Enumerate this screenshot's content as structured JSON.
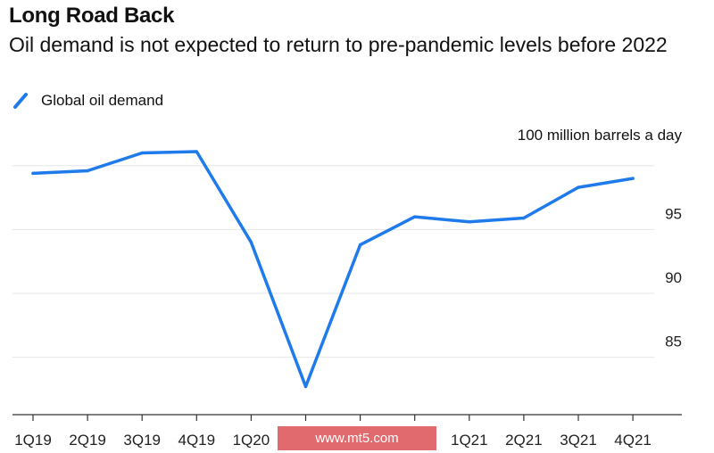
{
  "header": {
    "title": "Long Road Back",
    "subtitle": "Oil demand is not expected to return to pre-pandemic levels before 2022"
  },
  "legend": {
    "label": "Global oil demand",
    "color": "#1f7aeb"
  },
  "unit_label": "100 million barrels a day",
  "watermark": "www.mt5.com",
  "chart_data": {
    "type": "line",
    "title": "Long Road Back",
    "subtitle": "Oil demand is not expected to return to pre-pandemic levels before 2022",
    "xlabel": "",
    "ylabel": "",
    "unit_label": "100 million barrels a day",
    "categories": [
      "1Q19",
      "2Q19",
      "3Q19",
      "4Q19",
      "1Q20",
      "2Q20",
      "3Q20",
      "4Q20",
      "1Q21",
      "2Q21",
      "3Q21",
      "4Q21"
    ],
    "x_tick_labels": [
      "1Q19",
      "2Q19",
      "3Q19",
      "4Q19",
      "1Q20",
      "",
      "",
      "",
      "1Q21",
      "2Q21",
      "3Q21",
      "4Q21"
    ],
    "series": [
      {
        "name": "Global oil demand",
        "color": "#1f7aeb",
        "values": [
          99.4,
          99.6,
          101.0,
          101.1,
          94.0,
          82.7,
          93.8,
          96.0,
          95.6,
          95.9,
          98.3,
          99.0
        ]
      }
    ],
    "yticks": [
      85,
      90,
      95,
      100
    ],
    "ytick_labels": [
      "85",
      "90",
      "95",
      ""
    ],
    "ylim": [
      80.5,
      102.5
    ],
    "grid": true,
    "legend_position": "top-left"
  }
}
